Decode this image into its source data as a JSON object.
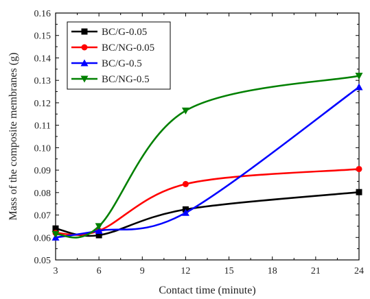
{
  "chart_data": {
    "type": "line",
    "title": "",
    "xlabel": "Contact time (minute)",
    "ylabel": "Mass of the composite membranes (g)",
    "xlim": [
      3,
      24
    ],
    "ylim": [
      0.05,
      0.16
    ],
    "xticks": [
      "3",
      "6",
      "9",
      "12",
      "15",
      "18",
      "21",
      "24"
    ],
    "yticks": [
      "0.05",
      "0.06",
      "0.07",
      "0.08",
      "0.09",
      "0.10",
      "0.11",
      "0.12",
      "0.13",
      "0.14",
      "0.15",
      "0.16"
    ],
    "grid": false,
    "legend_position": "top-left",
    "x": [
      3,
      6,
      12,
      24
    ],
    "series": [
      {
        "name": "BC/G-0.05",
        "color": "#000000",
        "marker": "square",
        "values": [
          0.064,
          0.061,
          0.0725,
          0.0802
        ]
      },
      {
        "name": "BC/NG-0.05",
        "color": "#ff0000",
        "marker": "circle",
        "values": [
          0.062,
          0.063,
          0.0838,
          0.0905
        ]
      },
      {
        "name": "BC/G-0.5",
        "color": "#0000ff",
        "marker": "triangle-up",
        "values": [
          0.06,
          0.063,
          0.071,
          0.127
        ]
      },
      {
        "name": "BC/NG-0.5",
        "color": "#008000",
        "marker": "triangle-down",
        "values": [
          0.0615,
          0.065,
          0.1165,
          0.132
        ]
      }
    ]
  }
}
